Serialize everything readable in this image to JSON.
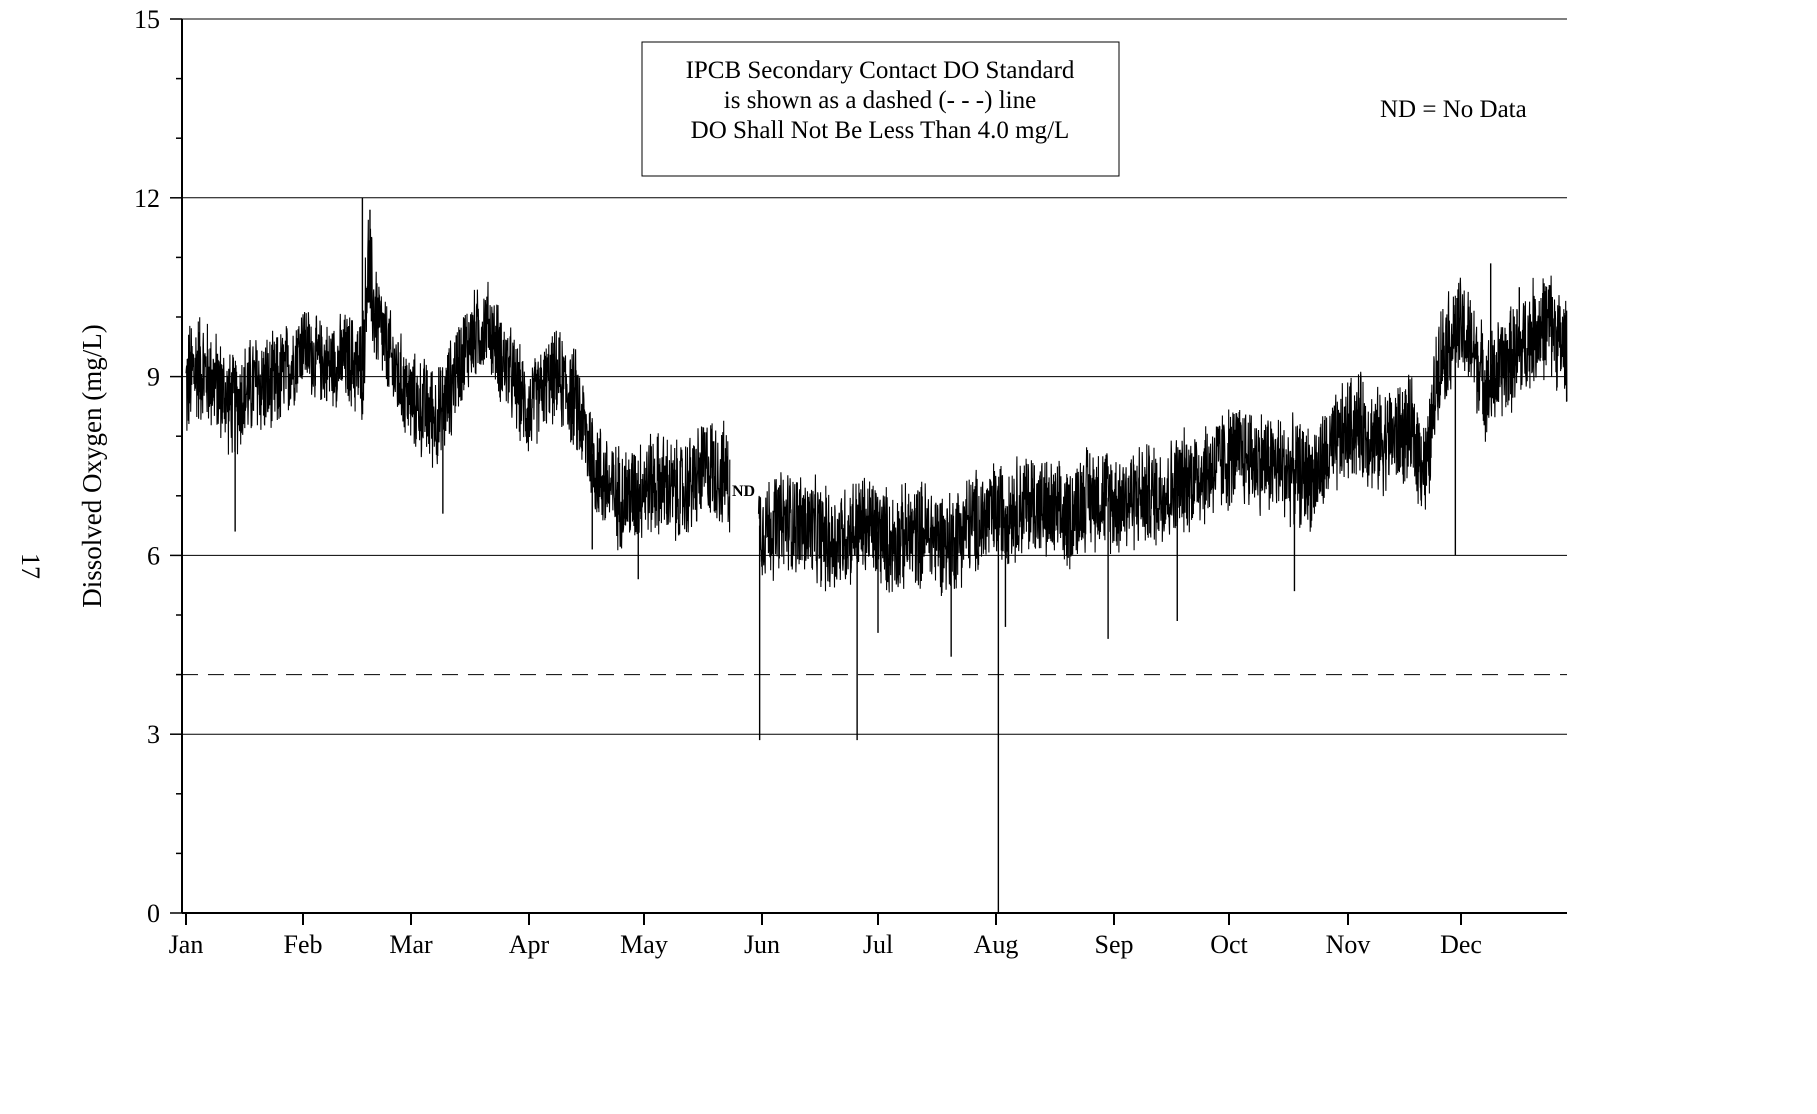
{
  "page_number": "17",
  "chart_data": {
    "type": "line",
    "title": "",
    "xlabel": "",
    "ylabel": "Dissolved Oxygen (mg/L)",
    "ylim": [
      0,
      15
    ],
    "y_ticks": [
      0,
      3,
      6,
      9,
      12,
      15
    ],
    "x_ticks": [
      "Jan",
      "Feb",
      "Mar",
      "Apr",
      "May",
      "Jun",
      "Jul",
      "Aug",
      "Sep",
      "Oct",
      "Nov",
      "Dec"
    ],
    "grid": "horizontal",
    "standard_line": {
      "value": 4.0,
      "style": "dashed"
    },
    "annotation": {
      "lines": [
        "IPCB Secondary Contact DO Standard",
        "is shown as a dashed (- - -) line",
        "DO Shall Not Be Less Than 4.0 mg/L"
      ]
    },
    "legend_note": "ND = No Data",
    "gap_label": "ND",
    "gap": {
      "start_month": 4.73,
      "end_month": 4.97
    },
    "series": [
      {
        "x_month": [
          0.0,
          0.1,
          0.25,
          0.4,
          0.5,
          0.6,
          0.75,
          0.9,
          1.0,
          1.1,
          1.25,
          1.4,
          1.55,
          1.6,
          1.65,
          1.75,
          1.85,
          2.0,
          2.15,
          2.25,
          2.4,
          2.5,
          2.65,
          2.75,
          2.9,
          3.0,
          3.15,
          3.25,
          3.4,
          3.5,
          3.6,
          3.75,
          3.9,
          4.0,
          4.15,
          4.3,
          4.45,
          4.55,
          4.7,
          4.97,
          5.1,
          5.25,
          5.45,
          5.6,
          5.75,
          5.9,
          6.0,
          6.1,
          6.25,
          6.4,
          6.5,
          6.6,
          6.75,
          6.9,
          7.0,
          7.15,
          7.3,
          7.45,
          7.6,
          7.75,
          7.9,
          8.05,
          8.2,
          8.35,
          8.5,
          8.65,
          8.8,
          8.95,
          9.1,
          9.25,
          9.4,
          9.55,
          9.7,
          9.85,
          10.0,
          10.1,
          10.25,
          10.4,
          10.55,
          10.7,
          10.8,
          10.9,
          11.0,
          11.1,
          11.25,
          11.4,
          11.55,
          11.7,
          11.85,
          11.95
        ],
        "y_center": [
          8.8,
          9.2,
          8.9,
          8.5,
          8.7,
          8.9,
          8.8,
          9.2,
          9.6,
          9.3,
          9.2,
          9.3,
          9.1,
          10.9,
          10.2,
          9.6,
          9.1,
          8.6,
          8.4,
          8.3,
          9.2,
          9.6,
          9.9,
          9.4,
          8.8,
          8.4,
          8.9,
          9.0,
          8.6,
          8.0,
          7.4,
          7.0,
          7.0,
          7.2,
          7.2,
          7.0,
          7.3,
          7.5,
          7.3,
          6.5,
          6.5,
          6.6,
          6.4,
          6.2,
          6.4,
          6.5,
          6.4,
          6.2,
          6.3,
          6.4,
          6.3,
          6.2,
          6.5,
          6.6,
          6.7,
          6.8,
          6.9,
          6.7,
          6.6,
          7.0,
          7.0,
          6.9,
          7.0,
          7.0,
          7.1,
          7.3,
          7.4,
          7.6,
          7.7,
          7.6,
          7.5,
          7.4,
          7.3,
          7.7,
          8.1,
          8.2,
          7.9,
          8.0,
          8.1,
          7.4,
          9.3,
          9.6,
          9.8,
          9.5,
          8.8,
          9.2,
          9.4,
          9.8,
          9.9,
          9.5
        ],
        "y_range": [
          1.2,
          1.1,
          1.0,
          1.0,
          1.0,
          1.0,
          1.0,
          0.9,
          0.8,
          0.8,
          0.8,
          0.9,
          1.0,
          1.2,
          1.1,
          0.9,
          0.9,
          0.9,
          1.0,
          1.0,
          0.9,
          0.9,
          0.8,
          0.9,
          0.9,
          0.9,
          0.8,
          0.9,
          1.0,
          1.0,
          1.0,
          1.0,
          1.0,
          1.0,
          1.0,
          1.0,
          1.0,
          1.0,
          1.0,
          1.0,
          1.0,
          1.0,
          1.0,
          1.0,
          1.0,
          1.0,
          1.0,
          1.0,
          1.0,
          1.0,
          1.0,
          1.0,
          1.0,
          1.0,
          1.0,
          1.0,
          1.0,
          1.0,
          1.0,
          1.0,
          1.0,
          1.0,
          1.0,
          1.0,
          1.0,
          1.0,
          1.0,
          1.0,
          1.0,
          1.0,
          1.0,
          1.0,
          1.0,
          1.0,
          1.0,
          1.0,
          1.0,
          1.0,
          1.0,
          1.0,
          1.0,
          1.0,
          1.0,
          1.0,
          1.0,
          1.0,
          1.0,
          1.0,
          1.0,
          1.0
        ],
        "spikes": [
          {
            "x_month": 1.55,
            "y": 12.0
          },
          {
            "x_month": 1.62,
            "y": 11.8
          },
          {
            "x_month": 0.42,
            "y": 6.4
          },
          {
            "x_month": 2.27,
            "y": 6.7
          },
          {
            "x_month": 3.55,
            "y": 6.1
          },
          {
            "x_month": 3.95,
            "y": 5.6
          },
          {
            "x_month": 4.98,
            "y": 2.9
          },
          {
            "x_month": 5.82,
            "y": 2.9
          },
          {
            "x_month": 6.0,
            "y": 4.7
          },
          {
            "x_month": 6.62,
            "y": 4.3
          },
          {
            "x_month": 7.02,
            "y": 0.0
          },
          {
            "x_month": 7.08,
            "y": 4.8
          },
          {
            "x_month": 7.95,
            "y": 4.6
          },
          {
            "x_month": 8.55,
            "y": 4.9
          },
          {
            "x_month": 9.55,
            "y": 5.4
          },
          {
            "x_month": 10.95,
            "y": 6.0
          },
          {
            "x_month": 11.28,
            "y": 10.9
          },
          {
            "x_month": 11.55,
            "y": 10.5
          }
        ]
      }
    ]
  }
}
